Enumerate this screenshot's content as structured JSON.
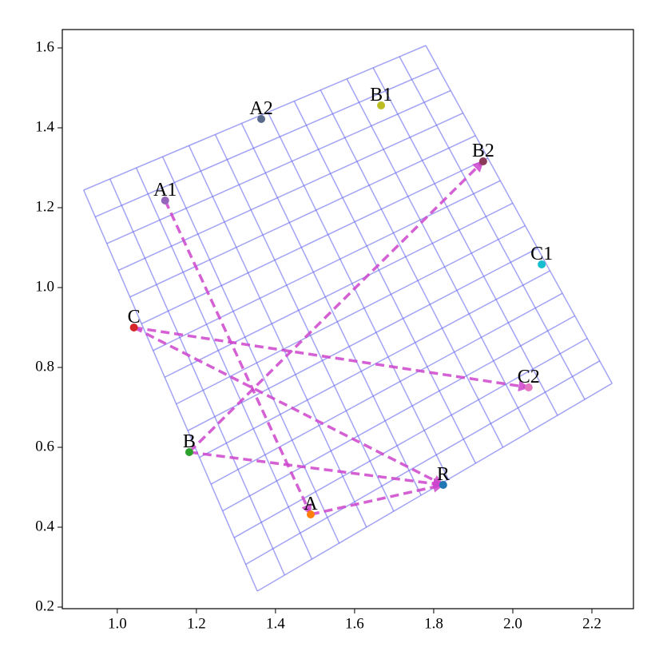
{
  "chart_data": {
    "type": "scatter",
    "xlim": [
      0.861,
      2.305
    ],
    "ylim": [
      0.196,
      1.646
    ],
    "xticks": [
      {
        "value": 1,
        "label": "1.0"
      },
      1.2,
      1.4,
      1.6,
      1.8,
      {
        "value": 2,
        "label": "2.0"
      },
      2.2
    ],
    "yticks": [
      0.2,
      0.4,
      0.6,
      0.8,
      {
        "value": 1,
        "label": "1.0"
      },
      1.2,
      1.4,
      1.6
    ],
    "mesh": {
      "color": "#6666ee",
      "cols": 13,
      "rows": 15,
      "corners": [
        [
          0.915,
          1.244
        ],
        [
          1.78,
          1.606
        ],
        [
          2.251,
          0.76
        ],
        [
          1.354,
          0.24
        ]
      ]
    },
    "points": [
      {
        "name": "A2",
        "x": 1.364,
        "y": 1.422,
        "color": "#5a6a8a"
      },
      {
        "name": "B1",
        "x": 1.667,
        "y": 1.456,
        "color": "#bcbd22"
      },
      {
        "name": "B2",
        "x": 1.925,
        "y": 1.316,
        "color": "#8c3a5a"
      },
      {
        "name": "A1",
        "x": 1.121,
        "y": 1.218,
        "color": "#9467bd"
      },
      {
        "name": "C1",
        "x": 2.073,
        "y": 1.058,
        "color": "#17becf"
      },
      {
        "name": "C",
        "x": 1.042,
        "y": 0.9,
        "color": "#d62728"
      },
      {
        "name": "C2",
        "x": 2.04,
        "y": 0.75,
        "color": "#e377c2"
      },
      {
        "name": "B",
        "x": 1.182,
        "y": 0.588,
        "color": "#2ca02c"
      },
      {
        "name": "R",
        "x": 1.824,
        "y": 0.506,
        "color": "#1f77b4"
      },
      {
        "name": "A",
        "x": 1.489,
        "y": 0.432,
        "color": "#ff7f0e"
      }
    ],
    "link_color": "#cc44cc",
    "links": [
      {
        "x": [
          1.121,
          1.489
        ],
        "y": [
          1.218,
          0.432
        ]
      },
      {
        "x": [
          1.489,
          1.824
        ],
        "y": [
          0.432,
          0.506
        ]
      },
      {
        "x": [
          1.182,
          1.925
        ],
        "y": [
          0.588,
          1.316
        ]
      },
      {
        "x": [
          1.182,
          1.824
        ],
        "y": [
          0.588,
          0.506
        ]
      },
      {
        "x": [
          1.042,
          2.04
        ],
        "y": [
          0.9,
          0.75
        ]
      },
      {
        "x": [
          1.042,
          1.824
        ],
        "y": [
          0.9,
          0.506
        ]
      }
    ]
  }
}
